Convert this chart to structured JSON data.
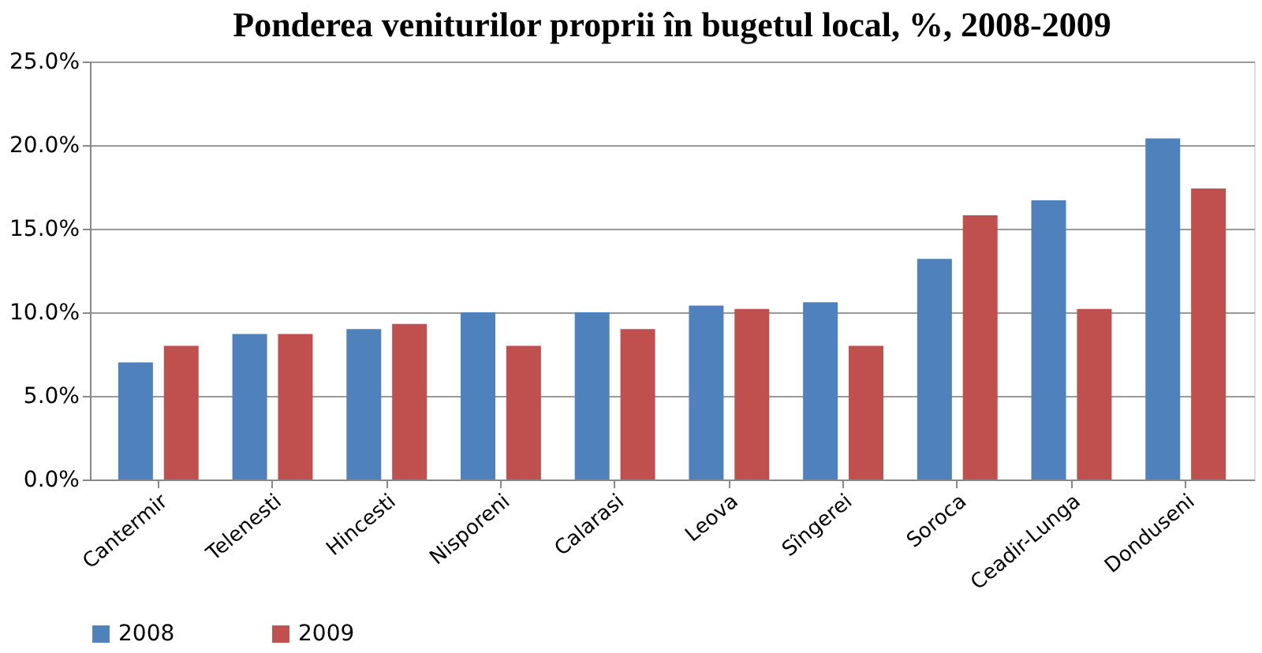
{
  "chart_data": {
    "type": "bar",
    "title": "Ponderea veniturilor proprii în bugetul local, %, 2008-2009",
    "categories": [
      "Cantermir",
      "Telenesti",
      "Hincesti",
      "Nisporeni",
      "Calarasi",
      "Leova",
      "Sîngerei",
      "Soroca",
      "Ceadir-Lunga",
      "Donduseni"
    ],
    "series": [
      {
        "name": "2008",
        "color": "#4f81bd",
        "values": [
          7.0,
          8.7,
          9.0,
          10.0,
          10.0,
          10.4,
          10.6,
          13.2,
          16.7,
          20.4
        ]
      },
      {
        "name": "2009",
        "color": "#c0504d",
        "values": [
          8.0,
          8.7,
          9.3,
          8.0,
          9.0,
          10.2,
          8.0,
          15.8,
          10.2,
          17.4
        ]
      }
    ],
    "ylim": [
      0,
      25
    ],
    "yticks": [
      {
        "value": 0,
        "label": "0.0%"
      },
      {
        "value": 5,
        "label": "5.0%"
      },
      {
        "value": 10,
        "label": "10.0%"
      },
      {
        "value": 15,
        "label": "15.0%"
      },
      {
        "value": 20,
        "label": "20.0%"
      },
      {
        "value": 25,
        "label": "25.0%"
      }
    ],
    "grid": "y",
    "legend": "bottom"
  }
}
